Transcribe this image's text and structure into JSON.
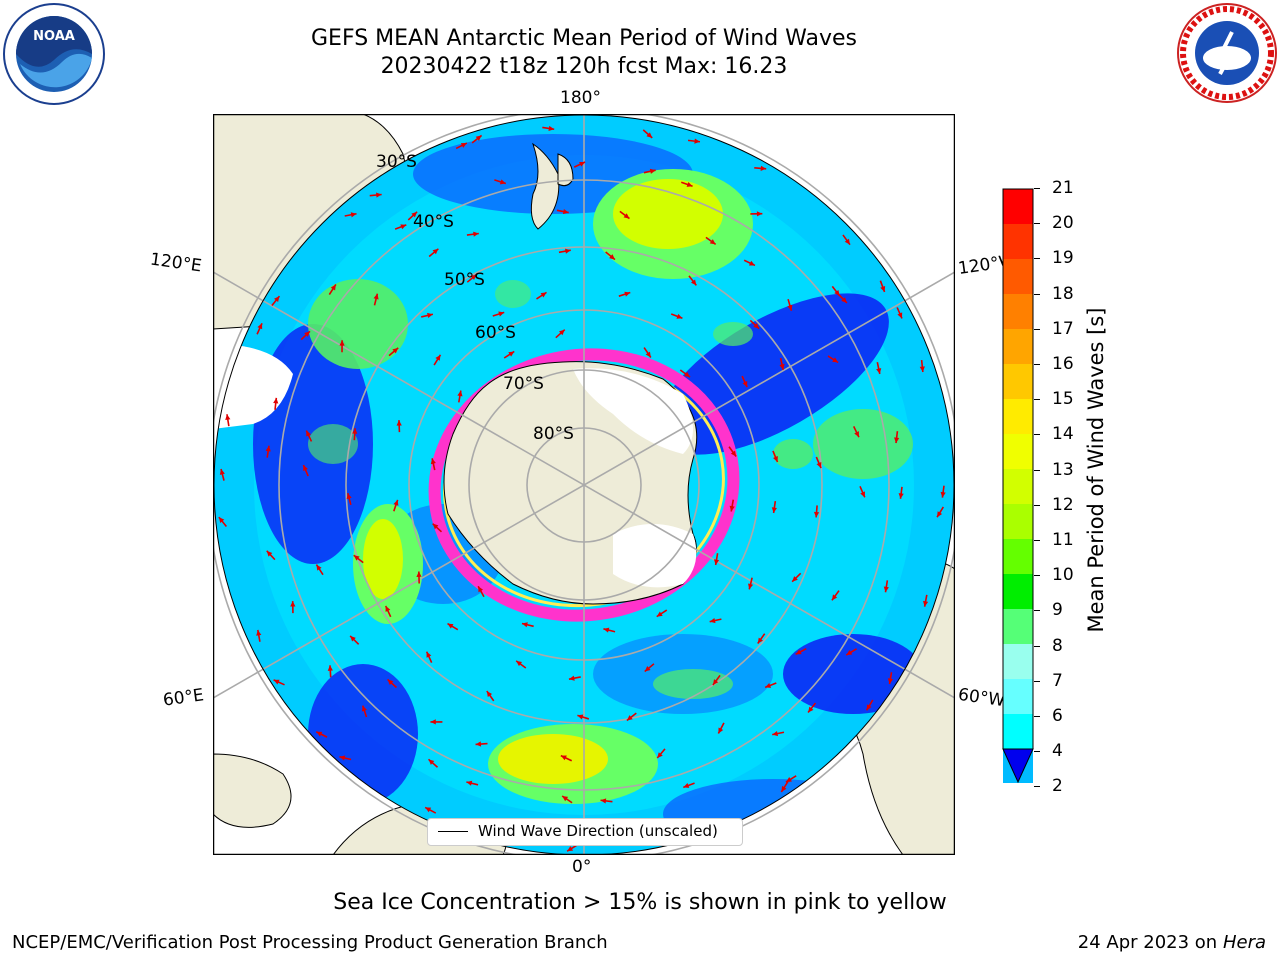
{
  "title_line1": "GEFS MEAN Antarctic Mean Period of Wind Waves",
  "title_line2": "20230422 t18z 120h fcst   Max: 16.23",
  "logos": {
    "left": "NOAA",
    "right": "NATIONAL WEATHER SERVICE"
  },
  "map": {
    "projection": "south-polar-stereographic",
    "lon_labels": {
      "top": "180°",
      "bottom": "0°",
      "left_upper": "120°E",
      "left_lower": "60°E",
      "right_upper": "120°W",
      "right_lower": "60°W"
    },
    "lat_labels": [
      "30°S",
      "40°S",
      "50°S",
      "60°S",
      "70°S",
      "80°S"
    ],
    "colors": {
      "land": "#eeecd8",
      "ocean_low": "#0a1ef5",
      "ice_edge": "#ff33cc"
    }
  },
  "colorbar": {
    "label": "Mean Period of Wind Waves [s]",
    "ticks": [
      "21",
      "20",
      "19",
      "18",
      "17",
      "16",
      "15",
      "14",
      "13",
      "12",
      "11",
      "10",
      "9",
      "8",
      "7",
      "6",
      "4",
      "2"
    ],
    "colors": [
      "#ff0000",
      "#ff3300",
      "#ff5a00",
      "#ff8000",
      "#ffa500",
      "#ffc800",
      "#ffeb00",
      "#f0ff00",
      "#d2ff00",
      "#aaff00",
      "#64ff00",
      "#00ee00",
      "#55ff77",
      "#99ffee",
      "#66ffff",
      "#00ffff",
      "#00bbff",
      "#0066ff"
    ],
    "extend_color": "#0000ee"
  },
  "legend": {
    "label": "Wind Wave Direction (unscaled)"
  },
  "note": "Sea Ice Concentration > 15% is shown in pink to yellow",
  "footer_left": "NCEP/EMC/Verification Post Processing Product Generation Branch",
  "footer_right_date": "24 Apr 2023 on ",
  "footer_right_machine": "Hera"
}
